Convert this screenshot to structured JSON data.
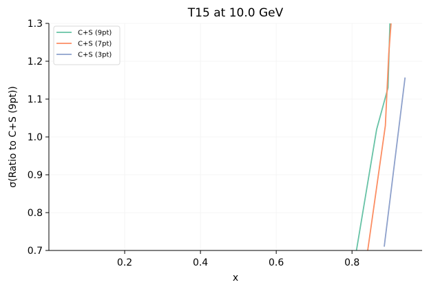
{
  "chart_data": {
    "type": "line",
    "title": "T15 at 10.0 GeV",
    "xlabel": "x",
    "ylabel": "σ(Ratio to C+S (9pt))",
    "xlim": [
      0.0,
      0.985
    ],
    "ylim": [
      0.7,
      1.3
    ],
    "xticks": [
      0.2,
      0.4,
      0.6,
      0.8
    ],
    "xtick_labels": [
      "0.2",
      "0.4",
      "0.6",
      "0.8"
    ],
    "yticks": [
      0.7,
      0.8,
      0.9,
      1.0,
      1.1,
      1.2,
      1.3
    ],
    "ytick_labels": [
      "0.7",
      "0.8",
      "0.9",
      "1.0",
      "1.1",
      "1.2",
      "1.3"
    ],
    "grid": true,
    "legend_position": "top-left",
    "series": [
      {
        "name": "C+S (9pt)",
        "color": "#66c2a5",
        "x": [
          0.81,
          0.865,
          0.895,
          0.9
        ],
        "y": [
          0.69,
          1.02,
          1.13,
          1.3
        ]
      },
      {
        "name": "C+S (7pt)",
        "color": "#fc8d62",
        "x": [
          0.84,
          0.888,
          0.897,
          0.903
        ],
        "y": [
          0.69,
          1.03,
          1.22,
          1.3
        ]
      },
      {
        "name": "C+S (3pt)",
        "color": "#8da0cb",
        "x": [
          0.885,
          0.94
        ],
        "y": [
          0.71,
          1.157
        ]
      }
    ]
  }
}
